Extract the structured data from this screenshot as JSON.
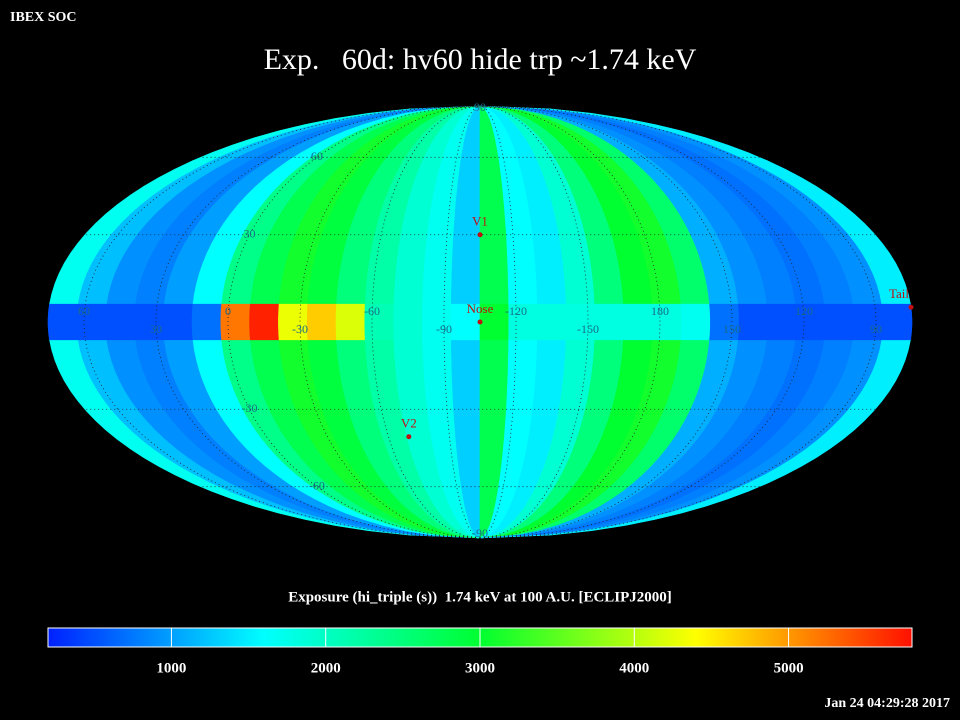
{
  "header": "IBEX SOC",
  "timestamp": "Jan 24 04:29:28 2017",
  "chart_data": {
    "type": "mollweide_heatmap",
    "title": "Exp.   60d: hv60 hide trp ~1.74 keV",
    "colorbar_label": "Exposure (hi_triple (s))  1.74 keV at 100 A.U. [ECLIPJ2000]",
    "center_lon": -105,
    "lon_bins": [
      75,
      63,
      51,
      39,
      27,
      15,
      3,
      -9,
      -21,
      -33,
      -45,
      -57,
      -69,
      -81,
      -93,
      -105,
      -117,
      -129,
      -141,
      -153,
      -165,
      -177,
      -189,
      -201,
      -213,
      -225,
      -237,
      -249,
      -261,
      -273,
      -285
    ],
    "band_lat": [
      -6,
      6
    ],
    "values": [
      1700,
      1200,
      900,
      800,
      1000,
      1600,
      2400,
      2800,
      3100,
      2900,
      2500,
      2200,
      1900,
      1700,
      1300,
      2800,
      1600,
      1500,
      1900,
      2500,
      3000,
      3100,
      2600,
      1100,
      900,
      800,
      700,
      800,
      900,
      1500
    ],
    "band_values": [
      500,
      500,
      500,
      500,
      500,
      700,
      5200,
      5700,
      4300,
      4700,
      4200,
      2100,
      1900,
      1700,
      1600,
      3000,
      1800,
      1800,
      1800,
      1800,
      1800,
      1800,
      1700,
      700,
      500,
      500,
      500,
      500,
      500,
      500
    ],
    "meridian_labels": [
      60,
      30,
      0,
      -30,
      -60,
      -90,
      -120,
      -150,
      180,
      150,
      120,
      90
    ],
    "parallel_labels": [
      90,
      60,
      30,
      -30,
      -60,
      -90
    ],
    "markers": [
      {
        "name": "V1",
        "lon": 255,
        "lat": 30
      },
      {
        "name": "Nose",
        "lon": 255,
        "lat": 0
      },
      {
        "name": "V2",
        "lon": 290,
        "lat": -40
      },
      {
        "name": "Tail",
        "lon": 75,
        "lat": 5
      }
    ],
    "marker_color": "#c01010",
    "colormap": [
      "#0020ff",
      "#00ffff",
      "#00ff30",
      "#ffff00",
      "#ff1000"
    ],
    "clim": [
      200,
      5800
    ],
    "cbar_ticks": [
      1000,
      2000,
      3000,
      4000,
      5000
    ]
  }
}
